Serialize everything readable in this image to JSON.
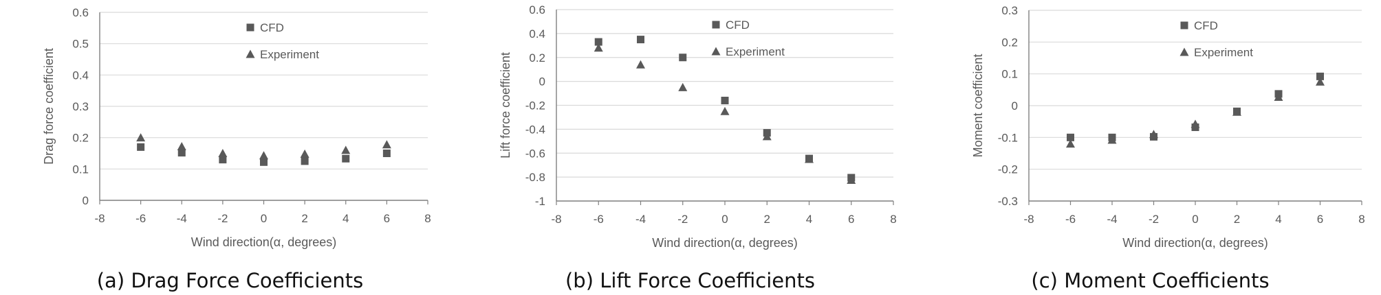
{
  "colors": {
    "marker": "#595959",
    "grid": "#d9d9d9",
    "axis": "#808080",
    "text": "#595959"
  },
  "chart_data": [
    {
      "type": "scatter",
      "caption": "(a) Drag Force Coefficients",
      "xlabel": "Wind direction(α, degrees)",
      "ylabel": "Drag force coefficient",
      "xlim": [
        -8,
        8
      ],
      "ylim": [
        0,
        0.6
      ],
      "xticks": [
        -8,
        -6,
        -4,
        -2,
        0,
        2,
        4,
        6,
        8
      ],
      "yticks": [
        0,
        0.1,
        0.2,
        0.3,
        0.4,
        0.5,
        0.6
      ],
      "grid": "horizontal",
      "legend_position": "top-right",
      "series": [
        {
          "name": "CFD",
          "marker": "square",
          "x": [
            -6,
            -4,
            -2,
            0,
            2,
            4,
            6
          ],
          "y": [
            0.17,
            0.152,
            0.13,
            0.122,
            0.125,
            0.133,
            0.15
          ]
        },
        {
          "name": "Experiment",
          "marker": "triangle",
          "x": [
            -6,
            -4,
            -2,
            0,
            2,
            4,
            6
          ],
          "y": [
            0.2,
            0.172,
            0.15,
            0.143,
            0.148,
            0.16,
            0.178
          ]
        }
      ]
    },
    {
      "type": "scatter",
      "caption": "(b) Lift Force Coefficients",
      "xlabel": "Wind direction(α, degrees)",
      "ylabel": "Lift force coefficient",
      "xlim": [
        -8,
        8
      ],
      "ylim": [
        -1,
        0.6
      ],
      "xticks": [
        -8,
        -6,
        -4,
        -2,
        0,
        2,
        4,
        6,
        8
      ],
      "yticks": [
        -1,
        -0.8,
        -0.6,
        -0.4,
        -0.2,
        0,
        0.2,
        0.4,
        0.6
      ],
      "grid": "horizontal",
      "legend_position": "top-right",
      "series": [
        {
          "name": "CFD",
          "marker": "square",
          "x": [
            -6,
            -4,
            -2,
            0,
            2,
            4,
            6
          ],
          "y": [
            0.33,
            0.35,
            0.2,
            -0.16,
            -0.43,
            -0.645,
            -0.805
          ]
        },
        {
          "name": "Experiment",
          "marker": "triangle",
          "x": [
            -6,
            -4,
            -2,
            0,
            2,
            4,
            6
          ],
          "y": [
            0.28,
            0.14,
            -0.05,
            -0.25,
            -0.46,
            -0.65,
            -0.825
          ]
        }
      ]
    },
    {
      "type": "scatter",
      "caption": "(c) Moment Coefficients",
      "xlabel": "Wind direction(α, degrees)",
      "ylabel": "Moment coefficient",
      "xlim": [
        -8,
        8
      ],
      "ylim": [
        -0.3,
        0.3
      ],
      "xticks": [
        -8,
        -6,
        -4,
        -2,
        0,
        2,
        4,
        6,
        8
      ],
      "yticks": [
        -0.3,
        -0.2,
        -0.1,
        0,
        0.1,
        0.2,
        0.3
      ],
      "grid": "horizontal",
      "legend_position": "top-right",
      "series": [
        {
          "name": "CFD",
          "marker": "square",
          "x": [
            -6,
            -4,
            -2,
            0,
            2,
            4,
            6
          ],
          "y": [
            -0.1,
            -0.1,
            -0.098,
            -0.068,
            -0.018,
            0.037,
            0.092
          ]
        },
        {
          "name": "Experiment",
          "marker": "triangle",
          "x": [
            -6,
            -4,
            -2,
            0,
            2,
            4,
            6
          ],
          "y": [
            -0.12,
            -0.108,
            -0.09,
            -0.058,
            -0.02,
            0.027,
            0.075
          ]
        }
      ]
    }
  ]
}
